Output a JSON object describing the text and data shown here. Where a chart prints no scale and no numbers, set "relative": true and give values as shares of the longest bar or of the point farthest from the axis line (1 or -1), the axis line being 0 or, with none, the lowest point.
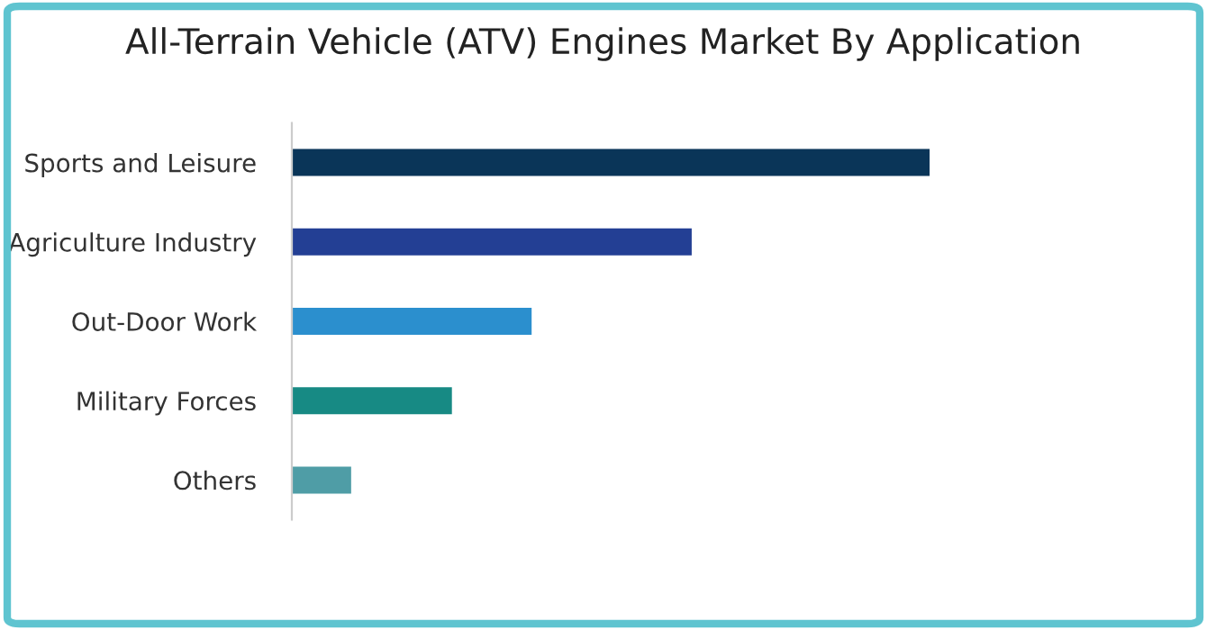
{
  "chart_data": {
    "type": "bar",
    "orientation": "horizontal",
    "relative": true,
    "title": "All-Terrain Vehicle (ATV) Engines Market By Application",
    "categories": [
      "Sports and Leisure",
      "Agriculture Industry",
      "Out-Door Work",
      "Military Forces",
      "Others"
    ],
    "values": [
      1,
      0.627,
      0.376,
      0.251,
      0.093
    ],
    "colors": [
      "#0a3558",
      "#233f94",
      "#2b8fce",
      "#178a84",
      "#4f9da6"
    ],
    "grid": false,
    "legend": false
  }
}
